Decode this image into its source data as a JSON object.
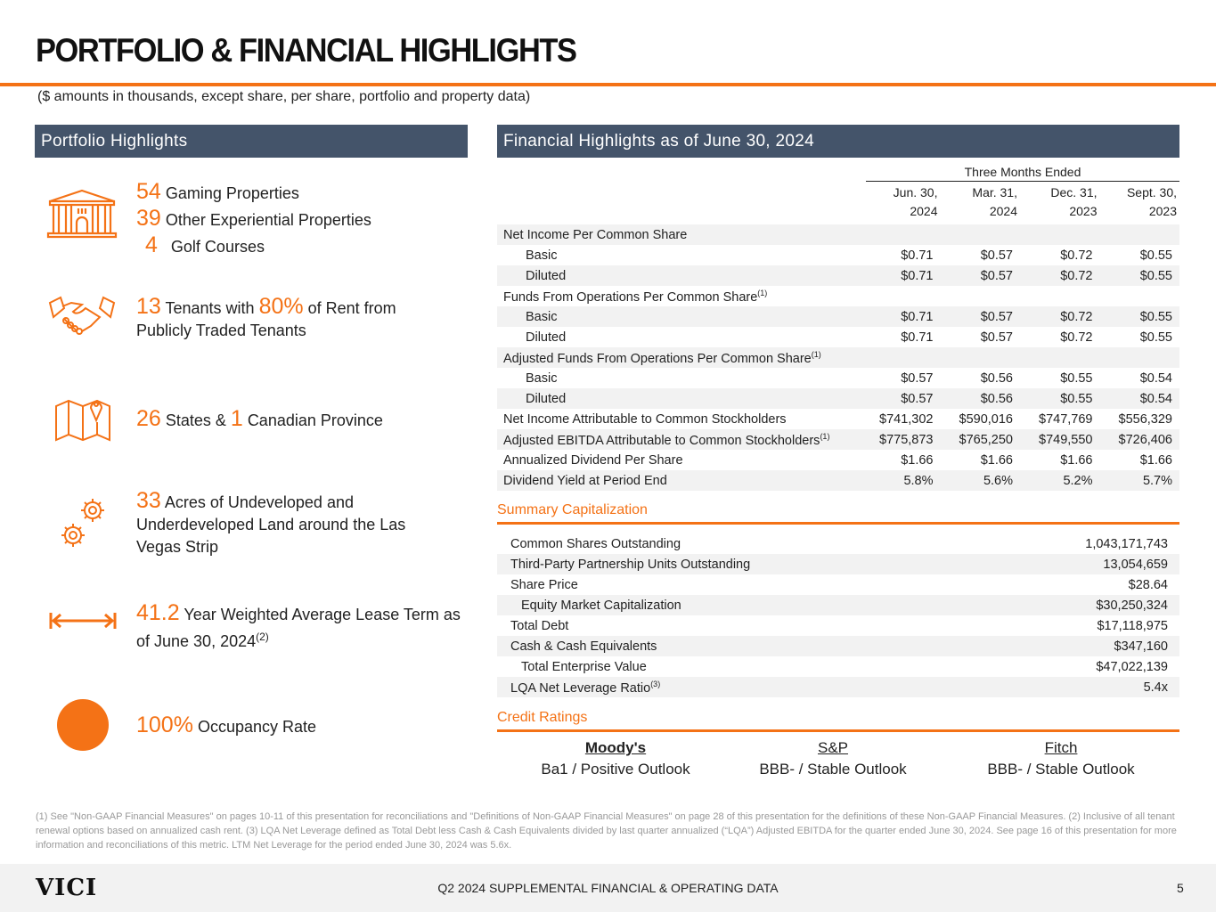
{
  "title": "PORTFOLIO & FINANCIAL HIGHLIGHTS",
  "subtitle": "($ amounts in thousands, except share, per share, portfolio and property data)",
  "portfolio": {
    "header": "Portfolio Highlights",
    "gaming_num": "54",
    "gaming_label": "Gaming Properties",
    "other_num": "39",
    "other_label": "Other Experiential Properties",
    "golf_num": "4",
    "golf_label": "Golf Courses",
    "tenants_num": "13",
    "tenants_mid": "Tenants with",
    "tenants_pct": "80%",
    "tenants_rest": "of Rent from Publicly Traded Tenants",
    "states_num": "26",
    "states_label": "States &",
    "prov_num": "1",
    "prov_label": "Canadian Province",
    "acres_num": "33",
    "acres_label": "Acres of Undeveloped and Underdeveloped Land around the Las Vegas Strip",
    "lease_num": "41.2",
    "lease_label": "Year Weighted Average Lease Term as of June 30, 2024",
    "lease_sup": "(2)",
    "occ_num": "100%",
    "occ_label": "Occupancy Rate"
  },
  "financial": {
    "header": "Financial Highlights as of June 30, 2024",
    "group_header": "Three Months Ended",
    "columns": [
      [
        "Jun. 30,",
        "2024"
      ],
      [
        "Mar. 31,",
        "2024"
      ],
      [
        "Dec. 31,",
        "2023"
      ],
      [
        "Sept. 30,",
        "2023"
      ]
    ],
    "rows": [
      {
        "label": "Net Income Per Common Share",
        "values": []
      },
      {
        "label": "Basic",
        "indent": true,
        "values": [
          "$0.71",
          "$0.57",
          "$0.72",
          "$0.55"
        ]
      },
      {
        "label": "Diluted",
        "indent": true,
        "values": [
          "$0.71",
          "$0.57",
          "$0.72",
          "$0.55"
        ]
      },
      {
        "label": "Funds From Operations Per Common Share",
        "sup": "(1)",
        "values": []
      },
      {
        "label": "Basic",
        "indent": true,
        "values": [
          "$0.71",
          "$0.57",
          "$0.72",
          "$0.55"
        ]
      },
      {
        "label": "Diluted",
        "indent": true,
        "values": [
          "$0.71",
          "$0.57",
          "$0.72",
          "$0.55"
        ]
      },
      {
        "label": "Adjusted Funds From Operations Per Common Share",
        "sup": "(1)",
        "values": []
      },
      {
        "label": "Basic",
        "indent": true,
        "values": [
          "$0.57",
          "$0.56",
          "$0.55",
          "$0.54"
        ]
      },
      {
        "label": "Diluted",
        "indent": true,
        "values": [
          "$0.57",
          "$0.56",
          "$0.55",
          "$0.54"
        ]
      },
      {
        "label": "Net Income Attributable to Common Stockholders",
        "values": [
          "$741,302",
          "$590,016",
          "$747,769",
          "$556,329"
        ]
      },
      {
        "label": "Adjusted EBITDA Attributable to Common Stockholders",
        "sup": "(1)",
        "values": [
          "$775,873",
          "$765,250",
          "$749,550",
          "$726,406"
        ]
      },
      {
        "label": "Annualized Dividend Per Share",
        "values": [
          "$1.66",
          "$1.66",
          "$1.66",
          "$1.66"
        ]
      },
      {
        "label": "Dividend Yield at Period End",
        "values": [
          "5.8%",
          "5.6%",
          "5.2%",
          "5.7%"
        ]
      }
    ]
  },
  "capitalization": {
    "header": "Summary Capitalization",
    "rows": [
      {
        "label": "Common Shares Outstanding",
        "value": "1,043,171,743"
      },
      {
        "label": "Third-Party Partnership Units Outstanding",
        "value": "13,054,659"
      },
      {
        "label": "Share Price",
        "value": "$28.64"
      },
      {
        "label": "Equity Market Capitalization",
        "indent": true,
        "value": "$30,250,324"
      },
      {
        "label": "Total Debt",
        "value": "$17,118,975"
      },
      {
        "label": "Cash & Cash Equivalents",
        "value": "$347,160"
      },
      {
        "label": "Total Enterprise Value",
        "indent": true,
        "value": "$47,022,139"
      },
      {
        "label": "LQA Net Leverage Ratio",
        "sup": "(3)",
        "value": "5.4x"
      }
    ]
  },
  "credit": {
    "header": "Credit Ratings",
    "agencies": [
      {
        "name": "Moody's",
        "rating": "Ba1 / Positive Outlook"
      },
      {
        "name": "S&P",
        "rating": "BBB- / Stable Outlook"
      },
      {
        "name": "Fitch",
        "rating": "BBB- / Stable Outlook"
      }
    ]
  },
  "footnote": "(1) See \"Non-GAAP Financial Measures\" on pages 10-11 of this presentation for reconciliations and \"Definitions of Non-GAAP Financial Measures\" on page 28 of this presentation for the definitions of these Non-GAAP Financial Measures. (2) Inclusive of all tenant renewal options based on annualized cash rent. (3) LQA Net Leverage defined as Total Debt less Cash & Cash Equivalents divided by last quarter annualized (“LQA”) Adjusted EBITDA for the quarter ended June 30, 2024. See page 16 of this presentation for more information and reconciliations of this metric. LTM Net Leverage for the period ended June 30, 2024 was 5.6x.",
  "footer": {
    "logo": "VICI",
    "center": "Q2 2024 SUPPLEMENTAL FINANCIAL & OPERATING DATA",
    "page": "5"
  },
  "colors": {
    "accent": "#f47216",
    "header_bar": "#44546a"
  }
}
